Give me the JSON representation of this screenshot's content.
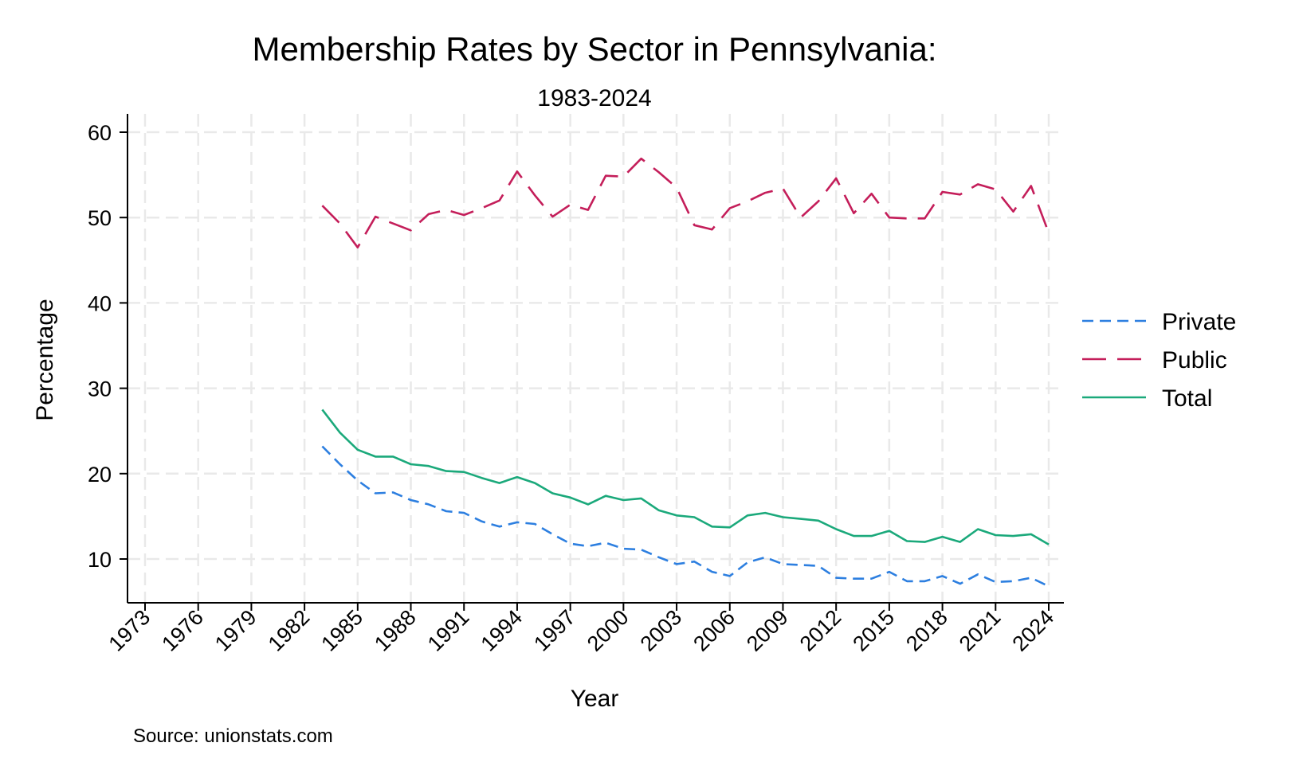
{
  "chart_data": {
    "type": "line",
    "title": "Membership Rates by Sector in Pennsylvania:",
    "subtitle": "1983-2024",
    "xlabel": "Year",
    "ylabel": "Percentage",
    "note": "Source: unionstats.com",
    "xlim": [
      1973,
      2024
    ],
    "ylim": [
      5,
      62
    ],
    "xticks": [
      1973,
      1976,
      1979,
      1982,
      1985,
      1988,
      1991,
      1994,
      1997,
      2000,
      2003,
      2006,
      2009,
      2012,
      2015,
      2018,
      2021,
      2024
    ],
    "yticks": [
      10,
      20,
      30,
      40,
      50,
      60
    ],
    "grid": true,
    "legend_position": "right",
    "x": [
      1983,
      1984,
      1985,
      1986,
      1987,
      1988,
      1989,
      1990,
      1991,
      1992,
      1993,
      1994,
      1995,
      1996,
      1997,
      1998,
      1999,
      2000,
      2001,
      2002,
      2003,
      2004,
      2005,
      2006,
      2007,
      2008,
      2009,
      2010,
      2011,
      2012,
      2013,
      2014,
      2015,
      2016,
      2017,
      2018,
      2019,
      2020,
      2021,
      2022,
      2023,
      2024
    ],
    "series": [
      {
        "name": "Private",
        "color": "#2d7fe0",
        "dash": "short",
        "values": [
          23.2,
          21.1,
          19.2,
          17.7,
          17.8,
          16.9,
          16.4,
          15.6,
          15.4,
          14.4,
          13.8,
          14.3,
          14.1,
          12.9,
          11.8,
          11.5,
          11.9,
          11.2,
          11.1,
          10.2,
          9.4,
          9.7,
          8.5,
          8.0,
          9.6,
          10.2,
          9.4,
          9.3,
          9.2,
          7.8,
          7.7,
          7.7,
          8.5,
          7.4,
          7.4,
          8.0,
          7.1,
          8.2,
          7.3,
          7.4,
          7.8,
          6.8
        ]
      },
      {
        "name": "Public",
        "color": "#c41e5a",
        "dash": "long",
        "values": [
          51.4,
          49.3,
          46.5,
          50.1,
          49.3,
          48.5,
          50.4,
          50.9,
          50.3,
          51.1,
          52.0,
          55.4,
          52.6,
          50.1,
          51.5,
          50.9,
          54.9,
          54.8,
          56.9,
          55.3,
          53.5,
          49.1,
          48.6,
          51.1,
          51.9,
          52.9,
          53.4,
          50.0,
          51.9,
          54.6,
          50.5,
          52.8,
          50.0,
          49.9,
          49.9,
          53.0,
          52.7,
          53.9,
          53.3,
          50.7,
          53.7,
          48.2
        ]
      },
      {
        "name": "Total",
        "color": "#1ba97b",
        "dash": "solid",
        "values": [
          27.5,
          24.8,
          22.8,
          22.0,
          22.0,
          21.1,
          20.9,
          20.3,
          20.2,
          19.5,
          18.9,
          19.6,
          18.9,
          17.7,
          17.2,
          16.4,
          17.4,
          16.9,
          17.1,
          15.7,
          15.1,
          14.9,
          13.8,
          13.7,
          15.1,
          15.4,
          14.9,
          14.7,
          14.5,
          13.5,
          12.7,
          12.7,
          13.3,
          12.1,
          12.0,
          12.6,
          12.0,
          13.5,
          12.8,
          12.7,
          12.9,
          11.7
        ]
      }
    ]
  }
}
